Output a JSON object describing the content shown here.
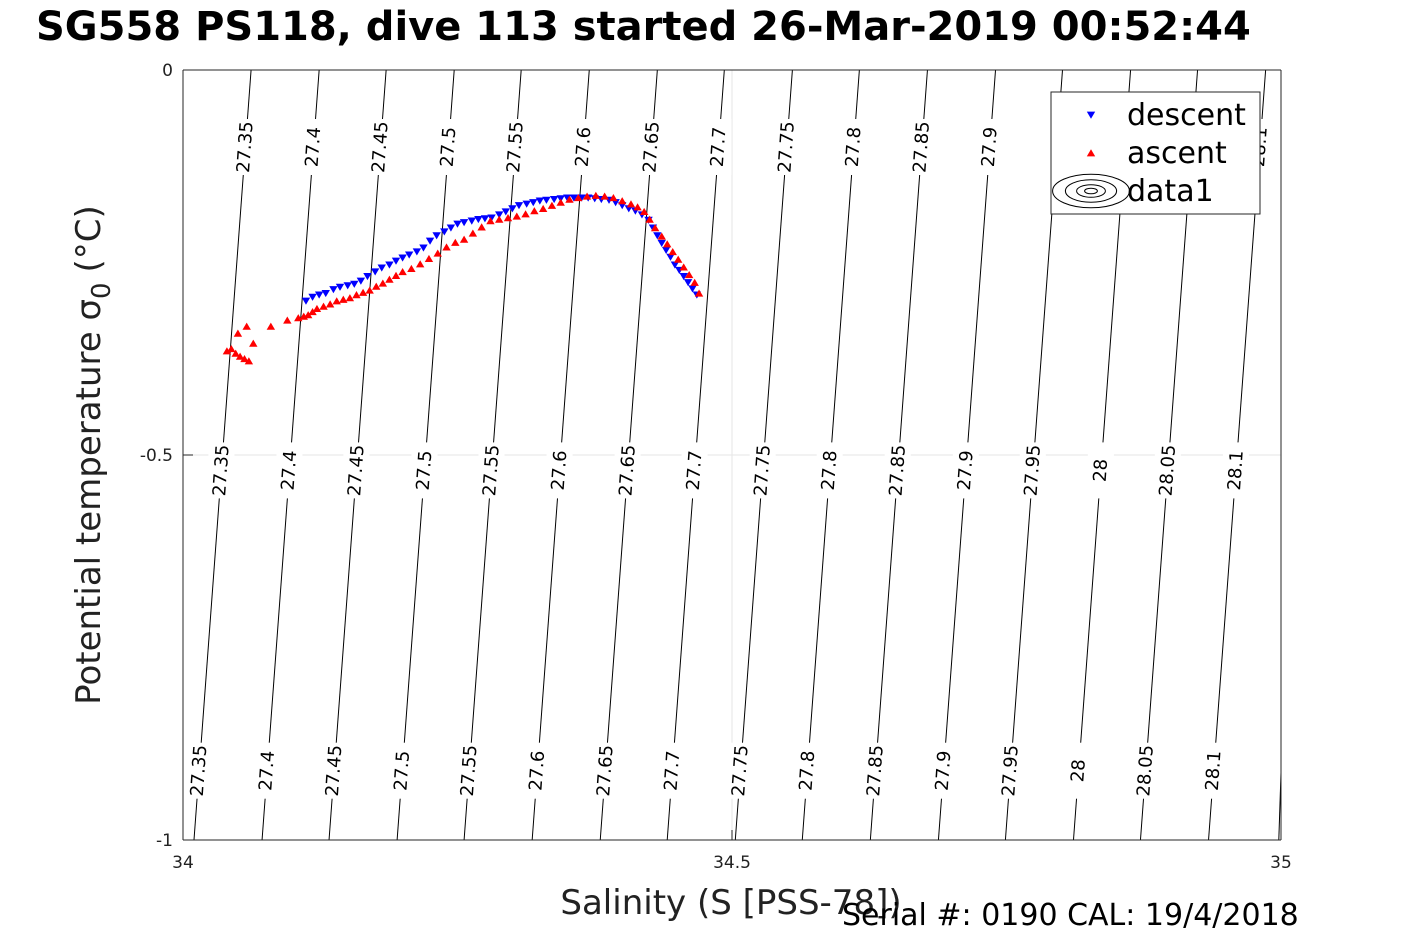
{
  "chart_data": {
    "type": "scatter",
    "title": "SG558 PS118, dive 113 started 26-Mar-2019 00:52:44",
    "xlabel": "Salinity (S [PSS-78])",
    "ylabel_main": "Potential temperature σ",
    "ylabel_sub": "0",
    "ylabel_unit": "(°C)",
    "xlim": [
      34,
      35
    ],
    "ylim": [
      -1,
      0
    ],
    "xticks": [
      {
        "value": 34,
        "label": "34"
      },
      {
        "value": 34.5,
        "label": "34.5"
      },
      {
        "value": 35,
        "label": "35"
      }
    ],
    "yticks": [
      {
        "value": 0,
        "label": "0"
      },
      {
        "value": -0.5,
        "label": "-0.5"
      },
      {
        "value": -1,
        "label": "-1"
      }
    ],
    "grid": true,
    "legend_position": "top-right",
    "legend": [
      {
        "label": "descent",
        "marker": "triangle-down",
        "color": "#0000ff"
      },
      {
        "label": "ascent",
        "marker": "triangle-up",
        "color": "#ff0000"
      },
      {
        "label": "data1",
        "marker": "contour",
        "color": "#000000"
      }
    ],
    "contours": {
      "levels": [
        "27.35",
        "27.4",
        "27.45",
        "27.5",
        "27.55",
        "27.6",
        "27.65",
        "27.7",
        "27.75",
        "27.8",
        "27.85",
        "27.9",
        "27.95",
        "28",
        "28.05",
        "28.1"
      ],
      "x_at_top": [
        34.062,
        34.124,
        34.185,
        34.247,
        34.308,
        34.37,
        34.432,
        34.493,
        34.555,
        34.616,
        34.678,
        34.74,
        34.801,
        34.863,
        34.924,
        34.986
      ],
      "x_at_bottom": [
        34.01,
        34.072,
        34.133,
        34.195,
        34.256,
        34.318,
        34.38,
        34.441,
        34.503,
        34.564,
        34.626,
        34.688,
        34.749,
        34.811,
        34.872,
        34.934
      ],
      "label_rows": [
        {
          "temp": -0.1,
          "levels": [
            "27.35",
            "27.4",
            "27.45",
            "27.5",
            "27.55",
            "27.6",
            "27.65",
            "27.7",
            "27.75",
            "27.8",
            "27.85",
            "27.9",
            "28.1"
          ]
        },
        {
          "temp": -0.52,
          "levels": [
            "27.35",
            "27.4",
            "27.45",
            "27.5",
            "27.55",
            "27.6",
            "27.65",
            "27.7",
            "27.75",
            "27.8",
            "27.85",
            "27.9",
            "27.95",
            "28",
            "28.05",
            "28.1"
          ]
        },
        {
          "temp": -0.91,
          "levels": [
            "27.35",
            "27.4",
            "27.45",
            "27.5",
            "27.55",
            "27.6",
            "27.65",
            "27.7",
            "27.75",
            "27.8",
            "27.85",
            "27.9",
            "27.95",
            "28",
            "28.05",
            "28.1"
          ]
        }
      ]
    },
    "series": [
      {
        "name": "descent",
        "color": "#0000ff",
        "marker": "triangle-down",
        "x": [
          34.112,
          34.118,
          34.124,
          34.13,
          34.137,
          34.143,
          34.15,
          34.156,
          34.162,
          34.168,
          34.175,
          34.181,
          34.188,
          34.194,
          34.2,
          34.206,
          34.213,
          34.219,
          34.225,
          34.231,
          34.238,
          34.244,
          34.25,
          34.256,
          34.263,
          34.269,
          34.275,
          34.281,
          34.288,
          34.294,
          34.3,
          34.306,
          34.313,
          34.319,
          34.325,
          34.331,
          34.338,
          34.344,
          34.35,
          34.356,
          34.363,
          34.369,
          34.375,
          34.381,
          34.388,
          34.394,
          34.4,
          34.406,
          34.412,
          34.418,
          34.424,
          34.428,
          34.432,
          34.436,
          34.44,
          34.444,
          34.448,
          34.452,
          34.456,
          34.46,
          34.464,
          34.468
        ],
        "y": [
          -0.3,
          -0.295,
          -0.292,
          -0.29,
          -0.285,
          -0.282,
          -0.28,
          -0.278,
          -0.274,
          -0.268,
          -0.262,
          -0.257,
          -0.253,
          -0.248,
          -0.244,
          -0.24,
          -0.236,
          -0.231,
          -0.222,
          -0.215,
          -0.21,
          -0.205,
          -0.2,
          -0.198,
          -0.196,
          -0.194,
          -0.193,
          -0.192,
          -0.188,
          -0.184,
          -0.18,
          -0.176,
          -0.174,
          -0.172,
          -0.17,
          -0.169,
          -0.168,
          -0.167,
          -0.166,
          -0.166,
          -0.166,
          -0.166,
          -0.167,
          -0.168,
          -0.169,
          -0.172,
          -0.176,
          -0.18,
          -0.183,
          -0.188,
          -0.195,
          -0.205,
          -0.215,
          -0.225,
          -0.234,
          -0.243,
          -0.253,
          -0.26,
          -0.268,
          -0.276,
          -0.284,
          -0.292
        ]
      },
      {
        "name": "ascent",
        "color": "#ff0000",
        "marker": "triangle-up",
        "x": [
          34.04,
          34.044,
          34.048,
          34.052,
          34.056,
          34.06,
          34.05,
          34.058,
          34.064,
          34.08,
          34.095,
          34.105,
          34.11,
          34.114,
          34.118,
          34.122,
          34.128,
          34.134,
          34.14,
          34.146,
          34.152,
          34.158,
          34.164,
          34.17,
          34.176,
          34.182,
          34.188,
          34.194,
          34.2,
          34.208,
          34.216,
          34.224,
          34.232,
          34.24,
          34.248,
          34.256,
          34.264,
          34.272,
          34.28,
          34.288,
          34.296,
          34.304,
          34.312,
          34.32,
          34.328,
          34.336,
          34.344,
          34.352,
          34.36,
          34.368,
          34.376,
          34.384,
          34.392,
          34.4,
          34.408,
          34.414,
          34.42,
          34.425,
          34.43,
          34.436,
          34.441,
          34.446,
          34.451,
          34.456,
          34.461,
          34.466,
          34.47
        ],
        "y": [
          -0.365,
          -0.362,
          -0.368,
          -0.372,
          -0.375,
          -0.378,
          -0.342,
          -0.333,
          -0.355,
          -0.333,
          -0.325,
          -0.322,
          -0.32,
          -0.318,
          -0.314,
          -0.31,
          -0.307,
          -0.304,
          -0.3,
          -0.298,
          -0.296,
          -0.292,
          -0.289,
          -0.286,
          -0.281,
          -0.277,
          -0.272,
          -0.267,
          -0.262,
          -0.258,
          -0.252,
          -0.245,
          -0.238,
          -0.23,
          -0.224,
          -0.22,
          -0.212,
          -0.204,
          -0.196,
          -0.194,
          -0.192,
          -0.19,
          -0.187,
          -0.183,
          -0.18,
          -0.176,
          -0.172,
          -0.168,
          -0.166,
          -0.164,
          -0.163,
          -0.164,
          -0.166,
          -0.17,
          -0.174,
          -0.178,
          -0.184,
          -0.194,
          -0.205,
          -0.216,
          -0.226,
          -0.236,
          -0.246,
          -0.256,
          -0.266,
          -0.276,
          -0.29
        ]
      }
    ]
  },
  "footer": "Serial #: 0190  CAL: 19/4/2018"
}
